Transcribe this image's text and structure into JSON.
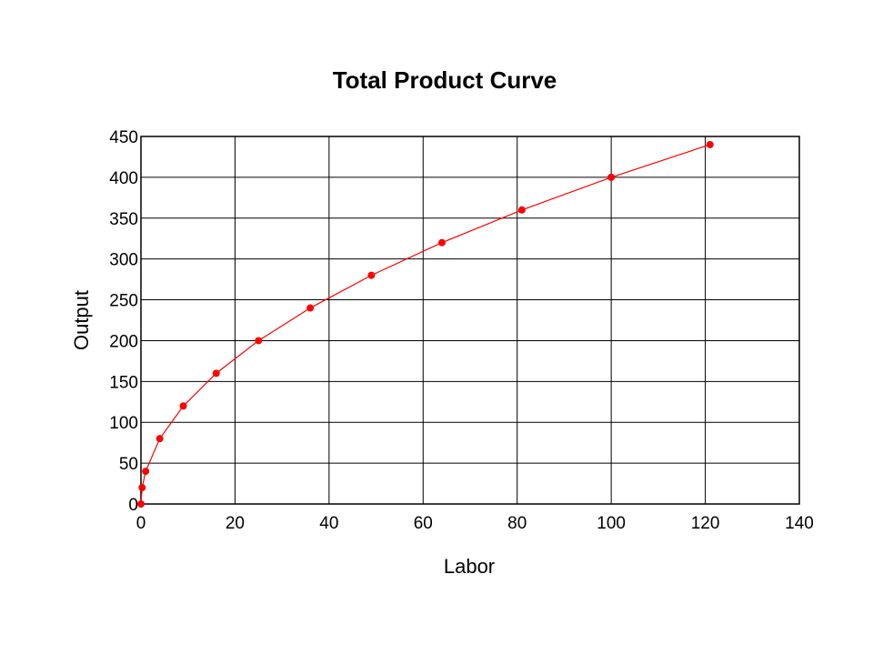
{
  "chart_data": {
    "type": "line",
    "title": "Total Product Curve",
    "xlabel": "Labor",
    "ylabel": "Output",
    "xlim": [
      0,
      140
    ],
    "ylim": [
      0,
      450
    ],
    "xticks": [
      0,
      20,
      40,
      60,
      80,
      100,
      120,
      140
    ],
    "yticks": [
      0,
      50,
      100,
      150,
      200,
      250,
      300,
      350,
      400,
      450
    ],
    "grid": true,
    "legend": "none",
    "series": [
      {
        "x": [
          0,
          0.25,
          1,
          4,
          9,
          16,
          25,
          36,
          49,
          64,
          81,
          100,
          121
        ],
        "y": [
          0,
          20,
          40,
          80,
          120,
          160,
          200,
          240,
          280,
          320,
          360,
          400,
          440
        ],
        "color": "#ff0000",
        "marker": "circle"
      }
    ]
  }
}
